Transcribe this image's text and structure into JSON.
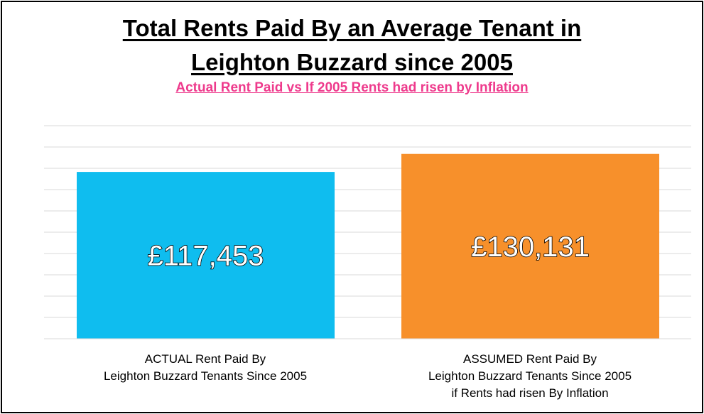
{
  "chart_data": {
    "type": "bar",
    "title_line1": "Total Rents Paid By an Average Tenant in",
    "title_line2": "Leighton Buzzard since 2005",
    "subtitle": "Actual Rent Paid vs If 2005 Rents had risen by Inflation ",
    "categories": [
      [
        "ACTUAL  Rent Paid By",
        "Leighton Buzzard Tenants Since 2005"
      ],
      [
        "ASSUMED Rent Paid By",
        "Leighton Buzzard Tenants Since 2005",
        "if Rents had risen By Inflation"
      ]
    ],
    "values": [
      117453,
      130131
    ],
    "data_labels": [
      "£117,453",
      "£130,131"
    ],
    "ylim": [
      0,
      150000
    ],
    "gridlines": 11,
    "grid": true,
    "legend": "none"
  },
  "colors": {
    "bar_actual": "#0fbdef",
    "bar_assumed": "#f7902b",
    "subtitle": "#ee3a8c",
    "grid": "#d9d9d9"
  }
}
